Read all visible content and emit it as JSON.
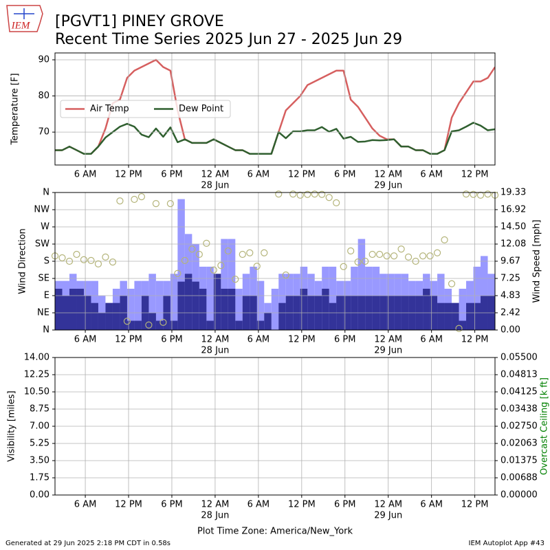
{
  "title": [
    "[PGVT1] PINEY GROVE",
    "Recent Time Series 2025 Jun 27 - 2025 Jun 29"
  ],
  "logo": "IEM",
  "xlabel": "Plot Time Zone: America/New_York",
  "footer": {
    "left": "Generated at 29 Jun 2025 2:18 PM CDT in 0.58s",
    "right": "IEM Autoplot App #43"
  },
  "chart_data": [
    {
      "type": "line",
      "ylabel": "Temperature [F]",
      "grid": true,
      "legend": "center left",
      "xlim": [
        1.8,
        62.8
      ],
      "xticks": [
        {
          "value": 6,
          "label": "6 AM"
        },
        {
          "value": 12,
          "label": "12 PM"
        },
        {
          "value": 18,
          "label": "6 PM"
        },
        {
          "value": 24,
          "label": "12 AM",
          "sublabel": "28 Jun"
        },
        {
          "value": 30,
          "label": "6 AM"
        },
        {
          "value": 36,
          "label": "12 PM"
        },
        {
          "value": 42,
          "label": "6 PM"
        },
        {
          "value": 48,
          "label": "12 AM",
          "sublabel": "29 Jun"
        },
        {
          "value": 54,
          "label": "6 AM"
        },
        {
          "value": 60,
          "label": "12 PM"
        }
      ],
      "ylim": [
        60.9,
        91.9
      ],
      "yticks": [
        70,
        80,
        90
      ],
      "x": [
        1.8,
        2.8,
        3.8,
        4.8,
        5.8,
        6.8,
        7.8,
        8.8,
        9.8,
        10.8,
        11.8,
        12.8,
        13.8,
        14.8,
        15.8,
        16.8,
        17.8,
        18.8,
        19.8,
        20.8,
        21.8,
        22.8,
        23.8,
        24.8,
        25.8,
        26.8,
        27.8,
        28.8,
        29.8,
        30.8,
        31.8,
        32.8,
        33.8,
        34.8,
        35.8,
        36.8,
        37.8,
        38.8,
        39.8,
        40.8,
        41.8,
        42.8,
        43.8,
        44.8,
        45.8,
        46.8,
        47.8,
        48.8,
        49.8,
        50.8,
        51.8,
        52.8,
        53.8,
        54.8,
        55.8,
        56.8,
        57.8,
        58.8,
        59.8,
        60.8,
        61.8,
        62.8
      ],
      "series": [
        {
          "name": "Air Temp",
          "color": "#d65f5f",
          "values": [
            65,
            65,
            66,
            65,
            64,
            64,
            66,
            71,
            78,
            79,
            85,
            87,
            88,
            89,
            90,
            88,
            87,
            76,
            68,
            67,
            67,
            67,
            68,
            67,
            66,
            65,
            65,
            64,
            64,
            64,
            64,
            70,
            76,
            78,
            80,
            83,
            84,
            85,
            86,
            87,
            87,
            79,
            77,
            74,
            71,
            69,
            68,
            68,
            66,
            66,
            65,
            65,
            64,
            64,
            65,
            74,
            78,
            81,
            84,
            84,
            85,
            88
          ]
        },
        {
          "name": "Dew Point",
          "color": "#2f5f2f",
          "values": [
            65,
            65,
            66,
            65,
            64,
            64,
            66,
            68.5,
            70,
            71.5,
            72.3,
            71.5,
            69.3,
            68.6,
            71,
            68.7,
            71.3,
            67.2,
            68,
            67,
            67,
            67,
            68,
            67,
            66,
            65,
            65,
            64,
            64,
            64,
            64,
            70,
            68.3,
            70.2,
            70.2,
            70.5,
            70.5,
            71.4,
            70.1,
            70.9,
            68.2,
            68.7,
            67.3,
            67.4,
            67.8,
            67.7,
            67.8,
            68,
            66,
            66,
            65,
            65,
            64,
            64,
            65,
            70.2,
            70.5,
            71.5,
            72.6,
            71.8,
            70.5,
            70.8
          ]
        }
      ]
    },
    {
      "type": "wind",
      "ylabel": "Wind Direction",
      "y2label": "Wind Speed [mph]",
      "grid": true,
      "xlim": [
        1.8,
        62.8
      ],
      "xticks": [
        {
          "value": 6,
          "label": "6 AM"
        },
        {
          "value": 12,
          "label": "12 PM"
        },
        {
          "value": 18,
          "label": "6 PM"
        },
        {
          "value": 24,
          "label": "12 AM",
          "sublabel": "28 Jun"
        },
        {
          "value": 30,
          "label": "6 AM"
        },
        {
          "value": 36,
          "label": "12 PM"
        },
        {
          "value": 42,
          "label": "6 PM"
        },
        {
          "value": 48,
          "label": "12 AM",
          "sublabel": "29 Jun"
        },
        {
          "value": 54,
          "label": "6 AM"
        },
        {
          "value": 60,
          "label": "12 PM"
        }
      ],
      "ylim": [
        0,
        360
      ],
      "yticks": [
        {
          "value": 0,
          "label": "N"
        },
        {
          "value": 45,
          "label": "NE"
        },
        {
          "value": 90,
          "label": "E"
        },
        {
          "value": 135,
          "label": "SE"
        },
        {
          "value": 180,
          "label": "S"
        },
        {
          "value": 225,
          "label": "SW"
        },
        {
          "value": 270,
          "label": "W"
        },
        {
          "value": 315,
          "label": "NW"
        },
        {
          "value": 360,
          "label": "N"
        }
      ],
      "y2lim": [
        0,
        19.33
      ],
      "y2ticks": [
        {
          "value": 0,
          "label": "0.00"
        },
        2.42,
        4.83,
        7.25,
        9.67,
        12.08,
        {
          "value": 14.5,
          "label": "14.50"
        },
        16.92,
        19.33
      ],
      "x": [
        1.8,
        2.8,
        3.8,
        4.8,
        5.8,
        6.8,
        7.8,
        8.8,
        9.8,
        10.8,
        11.8,
        12.8,
        13.8,
        14.8,
        15.8,
        16.8,
        17.8,
        18.8,
        19.8,
        20.8,
        21.8,
        22.8,
        23.8,
        24.8,
        25.8,
        26.8,
        27.8,
        28.8,
        29.8,
        30.8,
        31.8,
        32.8,
        33.8,
        34.8,
        35.8,
        36.8,
        37.8,
        38.8,
        39.8,
        40.8,
        41.8,
        42.8,
        43.8,
        44.8,
        45.8,
        46.8,
        47.8,
        48.8,
        49.8,
        50.8,
        51.8,
        52.8,
        53.8,
        54.8,
        55.8,
        56.8,
        57.8,
        58.8,
        59.8,
        60.8,
        61.8,
        62.8
      ],
      "series": [
        {
          "type": "bar",
          "axis": "y2",
          "color": "#9999ff",
          "values": [
            6.9,
            6.9,
            7.9,
            6.9,
            6.9,
            6.9,
            4.8,
            3.8,
            5.8,
            6.9,
            5.8,
            6.9,
            6.9,
            7.9,
            6.9,
            6.9,
            7.9,
            18.4,
            13.5,
            12.1,
            8.9,
            8.9,
            5.8,
            12.8,
            12.8,
            5.8,
            7.9,
            8.9,
            6.9,
            3.8,
            5.8,
            7.9,
            7.9,
            7.9,
            8.9,
            7.9,
            6.9,
            8.9,
            8.9,
            6.9,
            6.9,
            8.9,
            12.8,
            8.9,
            8.9,
            7.9,
            7.9,
            7.9,
            7.9,
            6.9,
            6.9,
            7.9,
            6.9,
            7.9,
            5.8,
            3.8,
            5.8,
            6.9,
            8.9,
            10.4,
            7.9,
            7.9
          ]
        },
        {
          "type": "bar",
          "axis": "y2",
          "color": "#333399",
          "values": [
            5.8,
            4.8,
            5.8,
            5.8,
            4.8,
            3.8,
            2.4,
            3.8,
            3.8,
            4.8,
            1.3,
            1.3,
            4.8,
            2.4,
            1.3,
            4.8,
            1.3,
            6.8,
            7.9,
            6.8,
            5.8,
            1.3,
            7.9,
            5.8,
            5.8,
            1.3,
            4.8,
            4.8,
            1.3,
            2.4,
            0,
            3.8,
            4.8,
            4.8,
            5.8,
            4.8,
            4.8,
            5.8,
            3.8,
            4.8,
            4.8,
            4.8,
            4.8,
            4.8,
            4.8,
            4.8,
            4.8,
            4.8,
            4.8,
            4.8,
            4.8,
            5.8,
            4.8,
            3.8,
            3.8,
            3.8,
            1.3,
            3.8,
            3.8,
            4.8,
            4.8,
            4.8
          ]
        },
        {
          "type": "scatter",
          "color": "#b4b47a",
          "values": [
            194,
            189,
            180,
            198,
            184,
            182,
            173,
            191,
            178,
            338,
            23,
            342,
            349,
            13,
            331,
            20,
            331,
            148,
            182,
            212,
            198,
            227,
            157,
            169,
            207,
            133,
            198,
            202,
            167,
            202,
            null,
            356,
            144,
            356,
            353,
            355,
            356,
            355,
            347,
            333,
            166,
            207,
            178,
            180,
            198,
            198,
            194,
            194,
            212,
            191,
            180,
            194,
            194,
            202,
            236,
            121,
            4,
            356,
            355,
            353,
            356,
            353
          ]
        }
      ]
    },
    {
      "type": "line",
      "ylabel": "Visibility [miles]",
      "y2label": "Overcast Ceiling [k ft]",
      "y2label_color": "#008000",
      "grid": true,
      "xlim": [
        1.8,
        62.8
      ],
      "xticks": [
        {
          "value": 6,
          "label": "6 AM"
        },
        {
          "value": 12,
          "label": "12 PM"
        },
        {
          "value": 18,
          "label": "6 PM"
        },
        {
          "value": 24,
          "label": "12 AM",
          "sublabel": "28 Jun"
        },
        {
          "value": 30,
          "label": "6 AM"
        },
        {
          "value": 36,
          "label": "12 PM"
        },
        {
          "value": 42,
          "label": "6 PM"
        },
        {
          "value": 48,
          "label": "12 AM",
          "sublabel": "29 Jun"
        },
        {
          "value": 54,
          "label": "6 AM"
        },
        {
          "value": 60,
          "label": "12 PM"
        }
      ],
      "ylim": [
        0,
        14
      ],
      "yticks": [
        {
          "value": 0,
          "label": "0.00"
        },
        1.75,
        {
          "value": 3.5,
          "label": "3.50"
        },
        5.25,
        {
          "value": 7,
          "label": "7.00"
        },
        8.75,
        {
          "value": 10.5,
          "label": "10.50"
        },
        12.25,
        {
          "value": 14,
          "label": "14.00"
        }
      ],
      "y2lim": [
        0,
        0.055
      ],
      "y2ticks": [
        {
          "value": 0,
          "label": "0.00000"
        },
        {
          "value": 0.006875,
          "label": "0.00688"
        },
        0.01375,
        {
          "value": 0.020625,
          "label": "0.02063"
        },
        {
          "value": 0.0275,
          "label": "0.02750"
        },
        {
          "value": 0.034375,
          "label": "0.03438"
        },
        0.04125,
        {
          "value": 0.048125,
          "label": "0.04813"
        },
        {
          "value": 0.055,
          "label": "0.05500"
        }
      ],
      "x": [],
      "series": []
    }
  ]
}
